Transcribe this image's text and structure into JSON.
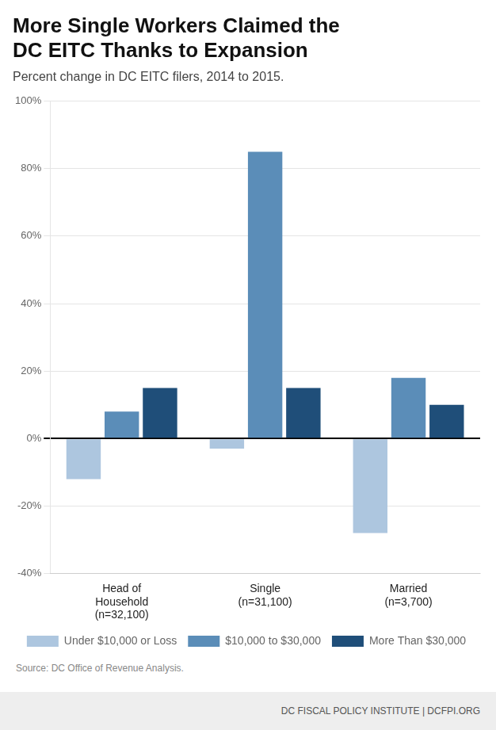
{
  "chart_data": {
    "type": "bar",
    "title": [
      "More Single Workers Claimed the",
      "DC EITC Thanks to Expansion"
    ],
    "subtitle": "Percent change in DC EITC filers, 2014 to 2015.",
    "annotations": [
      "Source: DC Office of Revenue Analysis.",
      "DC FISCAL POLICY INSTITUTE | DCFPI.ORG"
    ],
    "categories": [
      "Head of\nHousehold\n(n=32,100)",
      "Single\n(n=31,100)",
      "Married\n(n=3,700)"
    ],
    "series": [
      {
        "name": "Under $10,000 or Loss",
        "color": "#adc6df",
        "values": [
          -12,
          -3,
          -28
        ]
      },
      {
        "name": "$10,000 to $30,000",
        "color": "#5b8db8",
        "values": [
          8,
          85,
          18
        ]
      },
      {
        "name": "More Than $30,000",
        "color": "#1f4e79",
        "values": [
          15,
          15,
          10
        ]
      }
    ],
    "ylim": [
      -40,
      100
    ],
    "yticks": [
      {
        "value": -40,
        "label": "-40%"
      },
      {
        "value": -20,
        "label": "-20%"
      },
      {
        "value": 0,
        "label": "0%"
      },
      {
        "value": 20,
        "label": "20%"
      },
      {
        "value": 40,
        "label": "40%"
      },
      {
        "value": 60,
        "label": "60%"
      },
      {
        "value": 80,
        "label": "80%"
      },
      {
        "value": 100,
        "label": "100%"
      }
    ],
    "grid": true,
    "legend": "bottom"
  }
}
